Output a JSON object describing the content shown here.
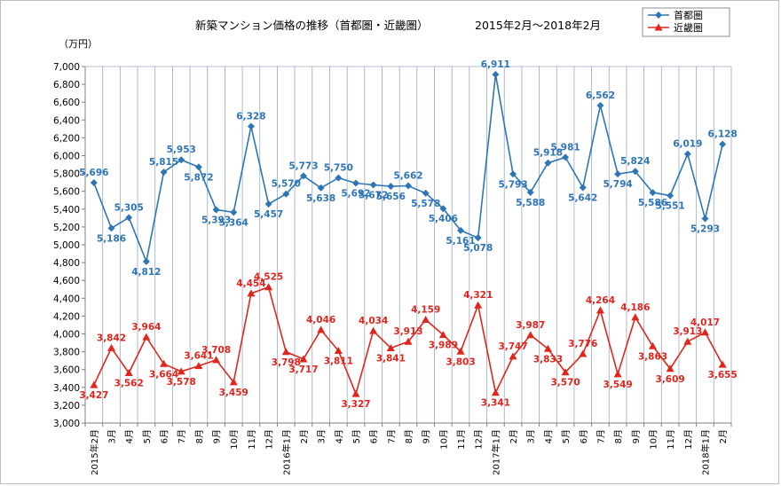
{
  "chart_data": {
    "type": "line",
    "title": "新築マンション価格の推移（首都圏・近畿圏）",
    "period": "2015年2月～2018年2月",
    "ylabel": "（万円）",
    "ylim": [
      3000,
      7000
    ],
    "ystep": 200,
    "yticks": [
      "3,000",
      "3,200",
      "3,400",
      "3,600",
      "3,800",
      "4,000",
      "4,200",
      "4,400",
      "4,600",
      "4,800",
      "5,000",
      "5,200",
      "5,400",
      "5,600",
      "5,800",
      "6,000",
      "6,200",
      "6,400",
      "6,600",
      "6,800",
      "7,000"
    ],
    "categories": [
      "2015年2月",
      "3月",
      "4月",
      "5月",
      "6月",
      "7月",
      "8月",
      "9月",
      "10月",
      "11月",
      "12月",
      "2016年1月",
      "2月",
      "3月",
      "4月",
      "5月",
      "6月",
      "7月",
      "8月",
      "9月",
      "10月",
      "11月",
      "12月",
      "2017年1月",
      "2月",
      "3月",
      "4月",
      "5月",
      "6月",
      "7月",
      "8月",
      "9月",
      "10月",
      "11月",
      "12月",
      "2018年1月",
      "2月"
    ],
    "series": [
      {
        "name": "首都圏",
        "color": "#2e75b6",
        "marker": "diamond",
        "values": [
          5696,
          5186,
          5305,
          4812,
          5815,
          5953,
          5872,
          5393,
          5364,
          6328,
          5457,
          5570,
          5773,
          5638,
          5750,
          5692,
          5672,
          5656,
          5662,
          5578,
          5406,
          5161,
          5078,
          6911,
          5793,
          5588,
          5918,
          5981,
          5642,
          6562,
          5794,
          5824,
          5586,
          5551,
          6019,
          5293,
          6128
        ],
        "labels": [
          "5,696",
          "5,186",
          "5,305",
          "4,812",
          "5,815",
          "5,953",
          "5,872",
          "5,393",
          "5,364",
          "6,328",
          "5,457",
          "5,570",
          "5,773",
          "5,638",
          "5,750",
          "5,692",
          "5,672",
          "5,656",
          "5,662",
          "5,578",
          "5,406",
          "5,161",
          "5,078",
          "6,911",
          "5,793",
          "5,588",
          "5,918",
          "5,981",
          "5,642",
          "6,562",
          "5,794",
          "5,824",
          "5,586",
          "5,551",
          "6,019",
          "5,293",
          "6,128"
        ]
      },
      {
        "name": "近畿圏",
        "color": "#e0261c",
        "marker": "triangle",
        "values": [
          3427,
          3842,
          3562,
          3964,
          3664,
          3578,
          3641,
          3708,
          3459,
          4454,
          4525,
          3798,
          3717,
          4046,
          3811,
          3327,
          4034,
          3841,
          3913,
          4159,
          3989,
          3803,
          4321,
          3341,
          3747,
          3987,
          3833,
          3570,
          3776,
          4264,
          3549,
          4186,
          3863,
          3609,
          3913,
          4017,
          3655
        ],
        "labels": [
          "3,427",
          "3,842",
          "3,562",
          "3,964",
          "3,664",
          "3,578",
          "3,641",
          "3,708",
          "3,459",
          "4,454",
          "4,525",
          "3,798",
          "3,717",
          "4,046",
          "3,811",
          "3,327",
          "4,034",
          "3,841",
          "3,913",
          "4,159",
          "3,989",
          "3,803",
          "4,321",
          "3,341",
          "3,747",
          "3,987",
          "3,833",
          "3,570",
          "3,776",
          "4,264",
          "3,549",
          "4,186",
          "3,863",
          "3,609",
          "3,913",
          "4,017",
          "3,655"
        ]
      }
    ],
    "legend": "top-right",
    "grid": "vertical"
  }
}
